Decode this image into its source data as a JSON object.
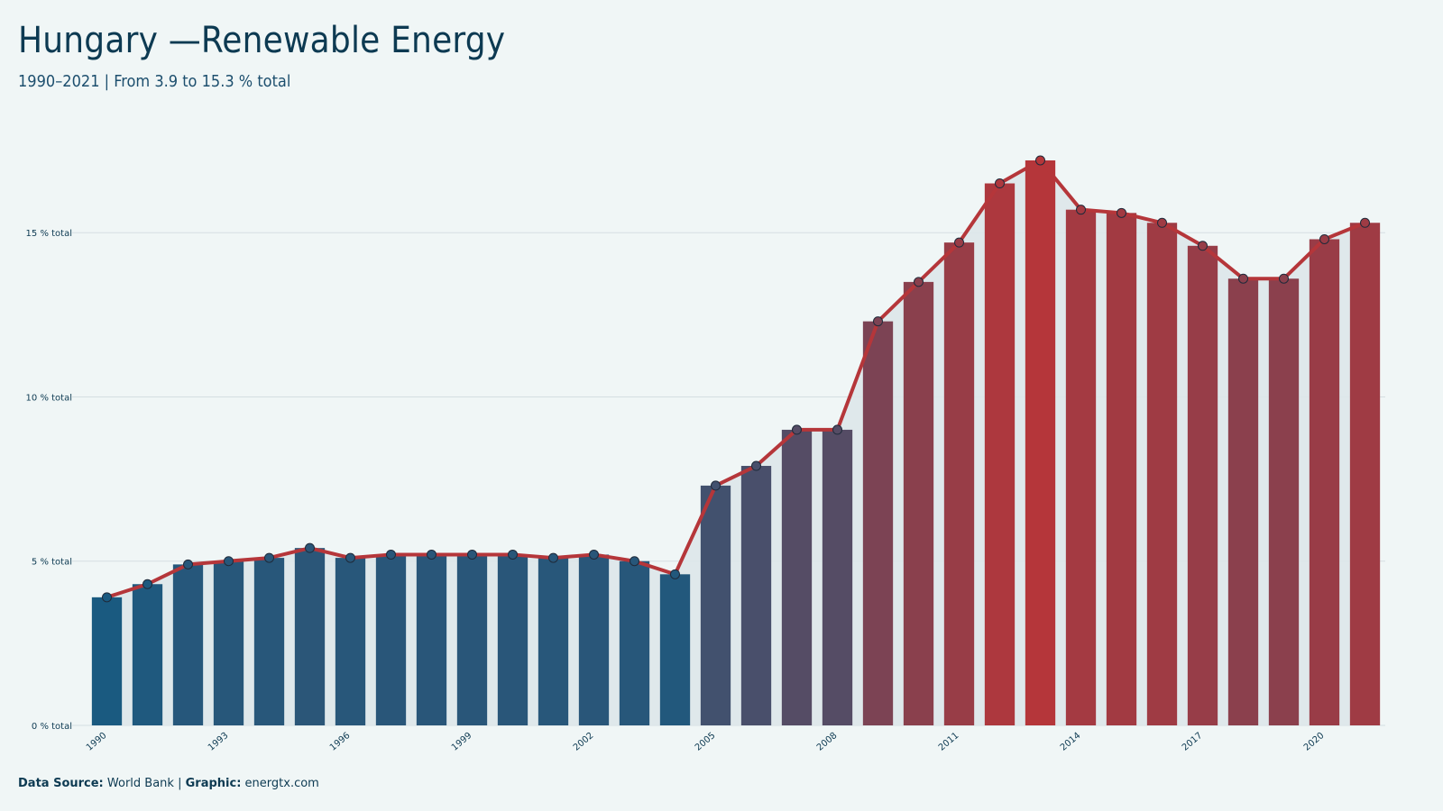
{
  "header": {
    "title": "Hungary —Renewable Energy",
    "subtitle": "1990–2021 | From 3.9 to 15.3 % total"
  },
  "footer": {
    "source_label": "Data Source:",
    "source_value": "World Bank",
    "separator": "|",
    "graphic_label": "Graphic:",
    "graphic_value": "energtx.com"
  },
  "colors": {
    "background": "#f0f6f6",
    "low": "#1a5a80",
    "high": "#b5363a",
    "line": "#b5363a",
    "area": "#dde7ea",
    "grid": "#d5dee2",
    "text": "#0d3a52"
  },
  "chart_data": {
    "type": "bar",
    "title": "Hungary —Renewable Energy",
    "subtitle": "1990–2021 | From 3.9 to 15.3 % total",
    "x": [
      1990,
      1991,
      1992,
      1993,
      1994,
      1995,
      1996,
      1997,
      1998,
      1999,
      2000,
      2001,
      2002,
      2003,
      2004,
      2005,
      2006,
      2007,
      2008,
      2009,
      2010,
      2011,
      2012,
      2013,
      2014,
      2015,
      2016,
      2017,
      2018,
      2019,
      2020,
      2021
    ],
    "values": [
      3.9,
      4.3,
      4.9,
      5.0,
      5.1,
      5.4,
      5.1,
      5.2,
      5.2,
      5.2,
      5.2,
      5.1,
      5.2,
      5.0,
      4.6,
      7.3,
      7.9,
      9.0,
      9.0,
      12.3,
      13.5,
      14.7,
      16.5,
      17.2,
      15.7,
      15.6,
      15.3,
      14.6,
      13.6,
      13.6,
      14.8,
      15.3
    ],
    "x_ticks": [
      1990,
      1993,
      1996,
      1999,
      2002,
      2005,
      2008,
      2011,
      2014,
      2017,
      2020
    ],
    "y_ticks": [
      0,
      5,
      10,
      15
    ],
    "y_tick_labels": [
      "0 % total",
      "5 % total",
      "10 % total",
      "15 % total"
    ],
    "ylim": [
      0,
      17.2
    ],
    "grid": true,
    "legend": "none",
    "overlay": "line with markers over bars, shaded area under line"
  }
}
